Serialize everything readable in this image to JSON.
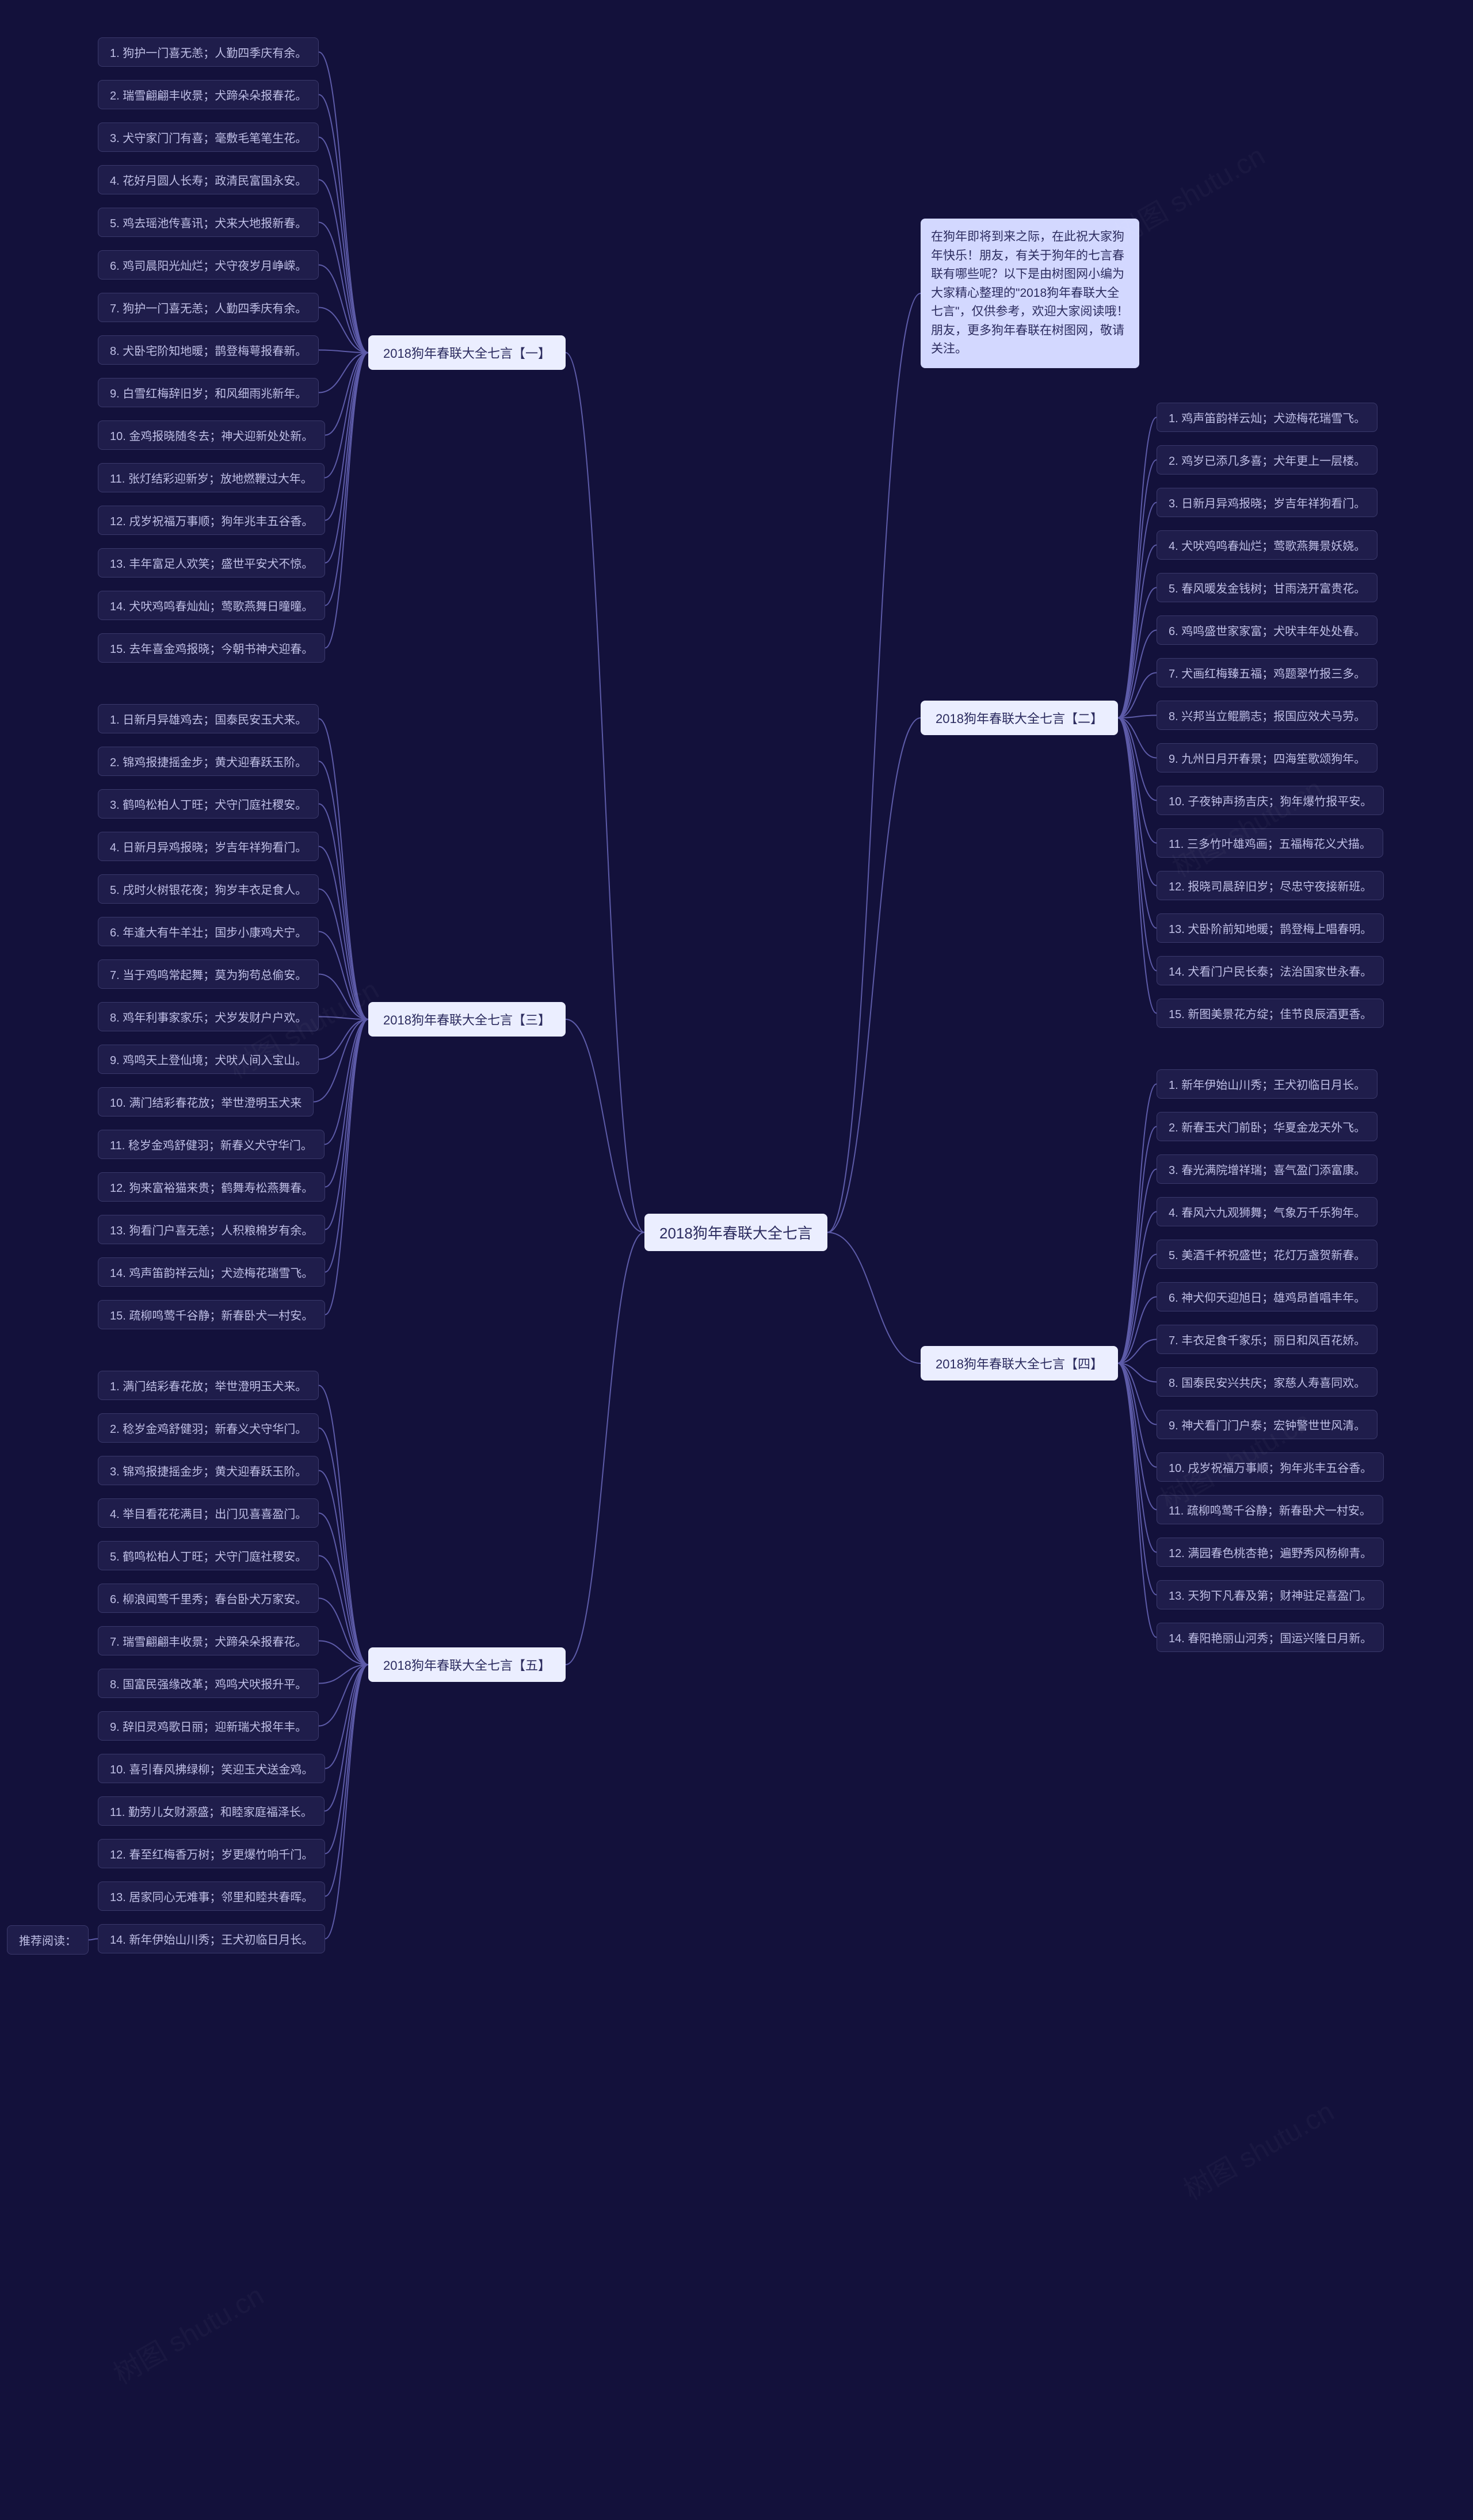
{
  "root": {
    "label": "2018狗年春联大全七言"
  },
  "intro": {
    "text": "在狗年即将到来之际，在此祝大家狗年快乐！朋友，有关于狗年的七言春联有哪些呢？以下是由树图网小编为大家精心整理的\"2018狗年春联大全七言\"，仅供参考，欢迎大家阅读哦！朋友，更多狗年春联在树图网，敬请关注。"
  },
  "sections": {
    "left": [
      {
        "title": "2018狗年春联大全七言【一】",
        "idx": 1,
        "items": [
          "1. 狗护一门喜无恙；人勤四季庆有余。",
          "2. 瑞雪翩翩丰收景；犬蹄朵朵报春花。",
          "3. 犬守家门门有喜；毫敷毛笔笔生花。",
          "4. 花好月圆人长寿；政清民富国永安。",
          "5. 鸡去瑶池传喜讯；犬来大地报新春。",
          "6. 鸡司晨阳光灿烂；犬守夜岁月峥嵘。",
          "7. 狗护一门喜无恙；人勤四季庆有余。",
          "8. 犬卧宅阶知地暖；鹊登梅萼报春新。",
          "9. 白雪红梅辞旧岁；和风细雨兆新年。",
          "10. 金鸡报晓随冬去；神犬迎新处处新。",
          "11. 张灯结彩迎新岁；放地燃鞭过大年。",
          "12. 戌岁祝福万事顺；狗年兆丰五谷香。",
          "13. 丰年富足人欢笑；盛世平安犬不惊。",
          "14. 犬吠鸡鸣春灿灿；莺歌燕舞日曈曈。",
          "15. 去年喜金鸡报晓；今朝书神犬迎春。"
        ]
      },
      {
        "title": "2018狗年春联大全七言【三】",
        "idx": 3,
        "items": [
          "1. 日新月异雄鸡去；国泰民安玉犬来。",
          "2. 锦鸡报捷摇金步；黄犬迎春跃玉阶。",
          "3. 鹤鸣松柏人丁旺；犬守门庭社稷安。",
          "4. 日新月异鸡报晓；岁吉年祥狗看门。",
          "5. 戌时火树银花夜；狗岁丰衣足食人。",
          "6. 年逢大有牛羊壮；国步小康鸡犬宁。",
          "7. 当于鸡鸣常起舞；莫为狗苟总偷安。",
          "8. 鸡年利事家家乐；犬岁发财户户欢。",
          "9. 鸡鸣天上登仙境；犬吠人间入宝山。",
          "10. 满门结彩春花放；举世澄明玉犬来",
          "11. 稔岁金鸡舒健羽；新春义犬守华门。",
          "12. 狗来富裕猫来贵；鹤舞寿松燕舞春。",
          "13. 狗看门户喜无恙；人积粮棉岁有余。",
          "14. 鸡声笛韵祥云灿；犬迹梅花瑞雪飞。",
          "15. 疏柳鸣莺千谷静；新春卧犬一村安。"
        ]
      },
      {
        "title": "2018狗年春联大全七言【五】",
        "idx": 5,
        "items": [
          "1. 满门结彩春花放；举世澄明玉犬来。",
          "2. 稔岁金鸡舒健羽；新春义犬守华门。",
          "3. 锦鸡报捷摇金步；黄犬迎春跃玉阶。",
          "4. 举目看花花满目；出门见喜喜盈门。",
          "5. 鹤鸣松柏人丁旺；犬守门庭社稷安。",
          "6. 柳浪闻莺千里秀；春台卧犬万家安。",
          "7. 瑞雪翩翩丰收景；犬蹄朵朵报春花。",
          "8. 国富民强缘改革；鸡鸣犬吠报升平。",
          "9. 辞旧灵鸡歌日丽；迎新瑞犬报年丰。",
          "10. 喜引春风拂绿柳；笑迎玉犬送金鸡。",
          "11. 勤劳儿女财源盛；和睦家庭福泽长。",
          "12. 春至红梅香万树；岁更爆竹响千门。",
          "13. 居家同心无难事；邻里和睦共春晖。",
          "14. 新年伊始山川秀；王犬初临日月长。"
        ]
      }
    ],
    "right": [
      {
        "title": "2018狗年春联大全七言【二】",
        "idx": 2,
        "items": [
          "1. 鸡声笛韵祥云灿；犬迹梅花瑞雪飞。",
          "2. 鸡岁已添几多喜；犬年更上一层楼。",
          "3. 日新月异鸡报晓；岁吉年祥狗看门。",
          "4. 犬吠鸡鸣春灿烂；莺歌燕舞景妖娆。",
          "5. 春风暖发金钱树；甘雨浇开富贵花。",
          "6. 鸡鸣盛世家家富；犬吠丰年处处春。",
          "7. 犬画红梅臻五福；鸡题翠竹报三多。",
          "8. 兴邦当立鲲鹏志；报国应效犬马劳。",
          "9. 九州日月开春景；四海笙歌颂狗年。",
          "10. 子夜钟声扬吉庆；狗年爆竹报平安。",
          "11. 三多竹叶雄鸡画；五福梅花义犬描。",
          "12. 报晓司晨辞旧岁；尽忠守夜接新班。",
          "13. 犬卧阶前知地暖；鹊登梅上唱春明。",
          "14. 犬看门户民长泰；法治国家世永春。",
          "15. 新图美景花方绽；佳节良辰酒更香。"
        ]
      },
      {
        "title": "2018狗年春联大全七言【四】",
        "idx": 4,
        "items": [
          "1. 新年伊始山川秀；王犬初临日月长。",
          "2. 新春玉犬门前卧；华夏金龙天外飞。",
          "3. 春光满院增祥瑞；喜气盈门添富康。",
          "4. 春风六九观狮舞；气象万千乐狗年。",
          "5. 美酒千杯祝盛世；花灯万盏贺新春。",
          "6. 神犬仰天迎旭日；雄鸡昂首唱丰年。",
          "7. 丰衣足食千家乐；丽日和风百花娇。",
          "8. 国泰民安兴共庆；家慈人寿喜同欢。",
          "9. 神犬看门门户泰；宏钟警世世风清。",
          "10. 戌岁祝福万事顺；狗年兆丰五谷香。",
          "11. 疏柳鸣莺千谷静；新春卧犬一村安。",
          "12. 满园春色桃杏艳；遍野秀风杨柳青。",
          "13. 天狗下凡春及第；财神驻足喜盈门。",
          "14. 春阳艳丽山河秀；国运兴隆日月新。"
        ]
      }
    ]
  },
  "extra_leaf": "推荐阅读：",
  "watermark": "树图 shutu.cn",
  "colors": {
    "bg": "#13113b",
    "node_light": "#ebeeff",
    "node_intro": "#d3d8ff",
    "leaf_bg": "#1f1d4b",
    "leaf_border": "#3a396b",
    "leaf_text": "#bfbfe6",
    "connector": "#5d5ba8"
  }
}
